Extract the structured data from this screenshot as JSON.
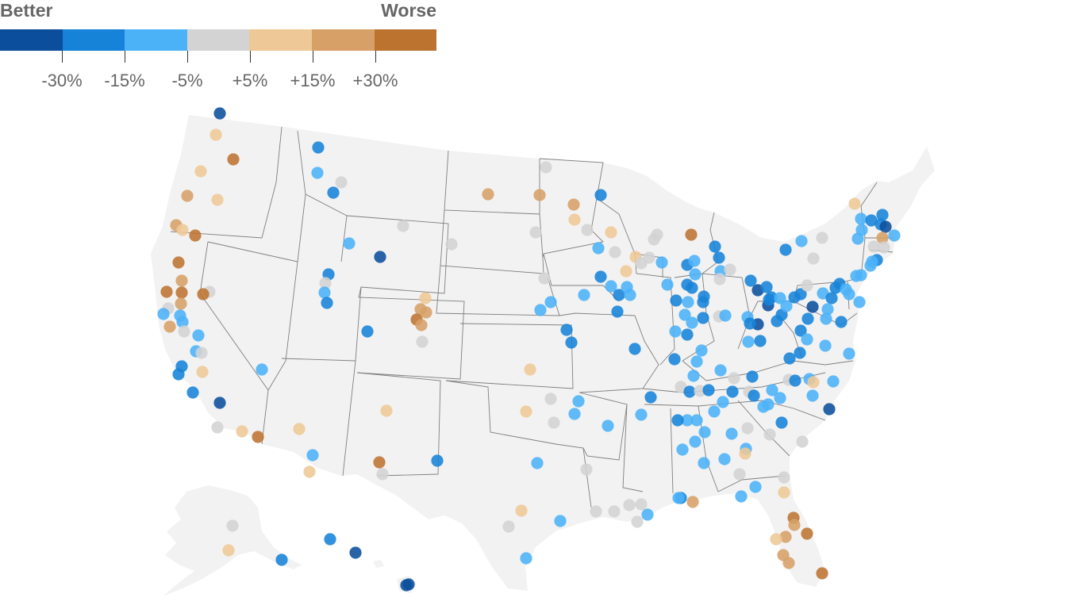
{
  "legend": {
    "left_label": "Better",
    "right_label": "Worse",
    "colors": [
      "#0b4f9c",
      "#1683d8",
      "#4bb2f8",
      "#d3d3d3",
      "#eec896",
      "#d6a066",
      "#bd7330"
    ],
    "ticks": [
      "-30%",
      "-15%",
      "-5%",
      "+5%",
      "+15%",
      "+30%"
    ]
  },
  "map": {
    "regions": [
      "Contiguous United States",
      "Alaska",
      "Hawaii"
    ],
    "colors": {
      "land": "#f2f2f2",
      "border": "#7f7f7f",
      "ocean": "#ffffff"
    }
  }
}
